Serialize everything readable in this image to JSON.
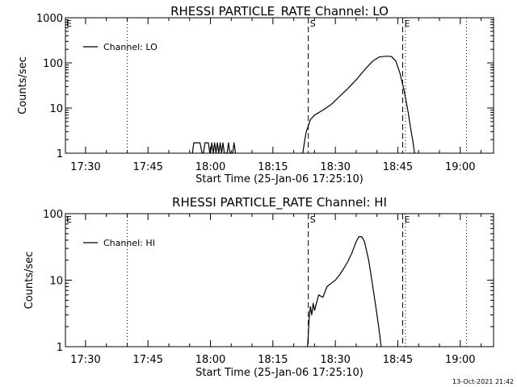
{
  "footer": {
    "timestamp": "13-Oct-2021 21:42"
  },
  "chart_data": [
    {
      "type": "line",
      "title": "RHESSI PARTICLE_RATE Channel: LO",
      "xlabel": "Start Time (25-Jan-06 17:25:10)",
      "ylabel": "Counts/sec",
      "yscale": "log",
      "ylim": [
        1,
        1000
      ],
      "yticks": [
        {
          "value": 1,
          "label": "1"
        },
        {
          "value": 10,
          "label": "10"
        },
        {
          "value": 100,
          "label": "100"
        },
        {
          "value": 1000,
          "label": "1000"
        }
      ],
      "xlim": [
        "17:25:10",
        "19:08"
      ],
      "xticks": [
        "17:30",
        "17:45",
        "18:00",
        "18:15",
        "18:30",
        "18:45",
        "19:00"
      ],
      "legend": {
        "label": "Channel: LO",
        "position": "top-left"
      },
      "markers": [
        {
          "time": "17:40:00",
          "style": "dotted",
          "label": ""
        },
        {
          "time": "18:23:30",
          "style": "dashed",
          "label": "S"
        },
        {
          "time": "18:46:10",
          "style": "dashed",
          "label": "E"
        },
        {
          "time": "18:46:50",
          "style": "dotted",
          "label": ""
        },
        {
          "time": "19:01:30",
          "style": "dotted",
          "label": ""
        }
      ],
      "corner_marks": [
        {
          "time": "17:25:10",
          "label": "E"
        }
      ],
      "series": [
        {
          "name": "Channel: LO",
          "points": [
            [
              "17:55:40",
              1
            ],
            [
              "17:56:00",
              1.7
            ],
            [
              "17:57:30",
              1.7
            ],
            [
              "17:58:00",
              1
            ],
            [
              "17:58:20",
              1
            ],
            [
              "17:58:40",
              1.7
            ],
            [
              "17:59:30",
              1.7
            ],
            [
              "17:59:50",
              1
            ],
            [
              "18:00:00",
              1
            ],
            [
              "18:00:20",
              1.7
            ],
            [
              "18:00:40",
              1
            ],
            [
              "18:01:00",
              1.7
            ],
            [
              "18:01:20",
              1
            ],
            [
              "18:01:40",
              1.7
            ],
            [
              "18:02:00",
              1
            ],
            [
              "18:02:20",
              1.7
            ],
            [
              "18:02:40",
              1
            ],
            [
              "18:03:00",
              1.7
            ],
            [
              "18:03:20",
              1
            ],
            [
              "18:04:00",
              1
            ],
            [
              "18:04:20",
              1.7
            ],
            [
              "18:04:40",
              1
            ],
            [
              "18:05:20",
              1
            ],
            [
              "18:05:40",
              1.7
            ],
            [
              "18:06:00",
              1
            ]
          ]
        },
        {
          "name": "Channel: LO",
          "points": [
            [
              "18:22:10",
              1
            ],
            [
              "18:22:40",
              2
            ],
            [
              "18:23:00",
              3
            ],
            [
              "18:23:30",
              4
            ],
            [
              "18:24:00",
              5.5
            ],
            [
              "18:25:00",
              7
            ],
            [
              "18:27:00",
              9
            ],
            [
              "18:29:00",
              12
            ],
            [
              "18:31:00",
              18
            ],
            [
              "18:33:00",
              27
            ],
            [
              "18:35:00",
              42
            ],
            [
              "18:37:00",
              70
            ],
            [
              "18:39:00",
              110
            ],
            [
              "18:40:30",
              135
            ],
            [
              "18:42:00",
              140
            ],
            [
              "18:43:00",
              140
            ],
            [
              "18:43:30",
              138
            ],
            [
              "18:44:30",
              110
            ],
            [
              "18:45:30",
              60
            ],
            [
              "18:46:30",
              25
            ],
            [
              "18:47:30",
              8
            ],
            [
              "18:48:00",
              4
            ],
            [
              "18:48:40",
              1.7
            ],
            [
              "18:49:00",
              1
            ]
          ]
        }
      ]
    },
    {
      "type": "line",
      "title": "RHESSI PARTICLE_RATE Channel: HI",
      "xlabel": "Start Time (25-Jan-06 17:25:10)",
      "ylabel": "Counts/sec",
      "yscale": "log",
      "ylim": [
        1,
        100
      ],
      "yticks": [
        {
          "value": 1,
          "label": "1"
        },
        {
          "value": 10,
          "label": "10"
        },
        {
          "value": 100,
          "label": "100"
        }
      ],
      "xlim": [
        "17:25:10",
        "19:08"
      ],
      "xticks": [
        "17:30",
        "17:45",
        "18:00",
        "18:15",
        "18:30",
        "18:45",
        "19:00"
      ],
      "legend": {
        "label": "Channel: HI",
        "position": "top-left"
      },
      "markers": [
        {
          "time": "17:40:00",
          "style": "dotted",
          "label": ""
        },
        {
          "time": "18:23:30",
          "style": "dashed",
          "label": "S"
        },
        {
          "time": "18:46:10",
          "style": "dashed",
          "label": "E"
        },
        {
          "time": "18:46:50",
          "style": "dotted",
          "label": ""
        },
        {
          "time": "19:01:30",
          "style": "dotted",
          "label": ""
        }
      ],
      "corner_marks": [
        {
          "time": "17:25:10",
          "label": "E"
        }
      ],
      "series": [
        {
          "name": "Channel: HI",
          "points": [
            [
              "18:23:20",
              1
            ],
            [
              "18:23:40",
              2.5
            ],
            [
              "18:24:00",
              4
            ],
            [
              "18:24:20",
              3
            ],
            [
              "18:24:40",
              4.5
            ],
            [
              "18:25:00",
              3.5
            ],
            [
              "18:26:00",
              6
            ],
            [
              "18:27:00",
              5.5
            ],
            [
              "18:28:00",
              8
            ],
            [
              "18:29:00",
              9
            ],
            [
              "18:30:00",
              10
            ],
            [
              "18:31:00",
              12
            ],
            [
              "18:32:00",
              15
            ],
            [
              "18:33:00",
              19
            ],
            [
              "18:34:00",
              26
            ],
            [
              "18:35:00",
              38
            ],
            [
              "18:35:40",
              45
            ],
            [
              "18:36:20",
              45
            ],
            [
              "18:37:00",
              38
            ],
            [
              "18:38:00",
              20
            ],
            [
              "18:39:00",
              8
            ],
            [
              "18:40:00",
              3
            ],
            [
              "18:40:40",
              1.5
            ],
            [
              "18:41:00",
              1
            ]
          ]
        }
      ]
    }
  ]
}
